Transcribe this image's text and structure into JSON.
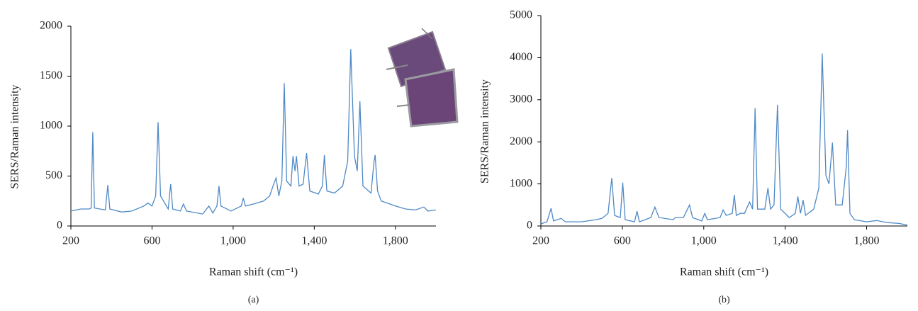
{
  "chart_data": [
    {
      "type": "line",
      "panel_label": "(a)",
      "x_label": "Raman shift (cm⁻¹)",
      "y_label": "SERS/Raman intensity",
      "xlim": [
        200,
        2000
      ],
      "ylim": [
        0,
        2000
      ],
      "xticks": [
        200,
        600,
        {
          "value": 1000,
          "label": "1,000"
        },
        {
          "value": 1400,
          "label": "1,400"
        },
        {
          "value": 1800,
          "label": "1,800"
        }
      ],
      "yticks": [
        0,
        500,
        1000,
        1500,
        2000
      ],
      "grid": false,
      "series": [
        {
          "color": "#4f89c6",
          "x": [
            200,
            250,
            290,
            300,
            308,
            316,
            370,
            382,
            392,
            450,
            500,
            560,
            580,
            600,
            618,
            630,
            642,
            680,
            692,
            702,
            740,
            755,
            770,
            850,
            880,
            900,
            920,
            930,
            940,
            990,
            1040,
            1050,
            1060,
            1100,
            1150,
            1180,
            1200,
            1212,
            1225,
            1240,
            1252,
            1264,
            1285,
            1295,
            1305,
            1312,
            1325,
            1345,
            1362,
            1378,
            1420,
            1440,
            1450,
            1462,
            1500,
            1540,
            1565,
            1580,
            1598,
            1612,
            1625,
            1640,
            1680,
            1695,
            1700,
            1712,
            1730,
            1800,
            1850,
            1900,
            1940,
            1960,
            2000
          ],
          "values": [
            150,
            170,
            170,
            180,
            940,
            180,
            160,
            410,
            170,
            140,
            150,
            200,
            230,
            200,
            300,
            1040,
            300,
            170,
            420,
            170,
            150,
            220,
            150,
            120,
            200,
            130,
            200,
            400,
            200,
            150,
            200,
            280,
            200,
            220,
            250,
            300,
            420,
            480,
            300,
            450,
            1430,
            450,
            400,
            700,
            550,
            700,
            400,
            420,
            730,
            350,
            320,
            400,
            710,
            350,
            330,
            400,
            650,
            1770,
            700,
            550,
            1250,
            400,
            330,
            650,
            710,
            350,
            250,
            200,
            170,
            160,
            190,
            150,
            160
          ]
        }
      ]
    },
    {
      "type": "line",
      "panel_label": "(b)",
      "x_label": "Raman shift (cm⁻¹)",
      "y_label": "SERS/Raman intensity",
      "xlim": [
        200,
        2000
      ],
      "ylim": [
        0,
        5000
      ],
      "xticks": [
        200,
        600,
        {
          "value": 1000,
          "label": "1,000"
        },
        {
          "value": 1400,
          "label": "1,400"
        },
        {
          "value": 1800,
          "label": "1,800"
        }
      ],
      "yticks": [
        0,
        1000,
        2000,
        3000,
        4000,
        5000
      ],
      "grid": false,
      "series": [
        {
          "color": "#4f89c6",
          "x": [
            200,
            230,
            250,
            262,
            300,
            320,
            400,
            470,
            500,
            530,
            548,
            562,
            590,
            602,
            614,
            660,
            672,
            684,
            740,
            760,
            780,
            850,
            860,
            900,
            930,
            945,
            990,
            1005,
            1018,
            1080,
            1095,
            1110,
            1140,
            1150,
            1160,
            1180,
            1200,
            1225,
            1240,
            1252,
            1264,
            1300,
            1315,
            1328,
            1345,
            1362,
            1378,
            1420,
            1450,
            1462,
            1475,
            1488,
            1500,
            1540,
            1565,
            1582,
            1600,
            1615,
            1632,
            1648,
            1680,
            1700,
            1706,
            1718,
            1740,
            1800,
            1850,
            1900,
            1960,
            2000
          ],
          "values": [
            50,
            100,
            420,
            120,
            180,
            100,
            100,
            150,
            180,
            300,
            1140,
            250,
            200,
            1030,
            150,
            100,
            350,
            100,
            200,
            450,
            200,
            150,
            200,
            200,
            500,
            200,
            120,
            300,
            150,
            200,
            380,
            250,
            300,
            740,
            250,
            300,
            300,
            570,
            400,
            2800,
            400,
            400,
            900,
            400,
            500,
            2880,
            400,
            200,
            300,
            700,
            300,
            620,
            250,
            400,
            900,
            4100,
            1200,
            1000,
            1980,
            500,
            500,
            1400,
            2280,
            300,
            150,
            100,
            130,
            80,
            60,
            20
          ]
        }
      ]
    }
  ]
}
